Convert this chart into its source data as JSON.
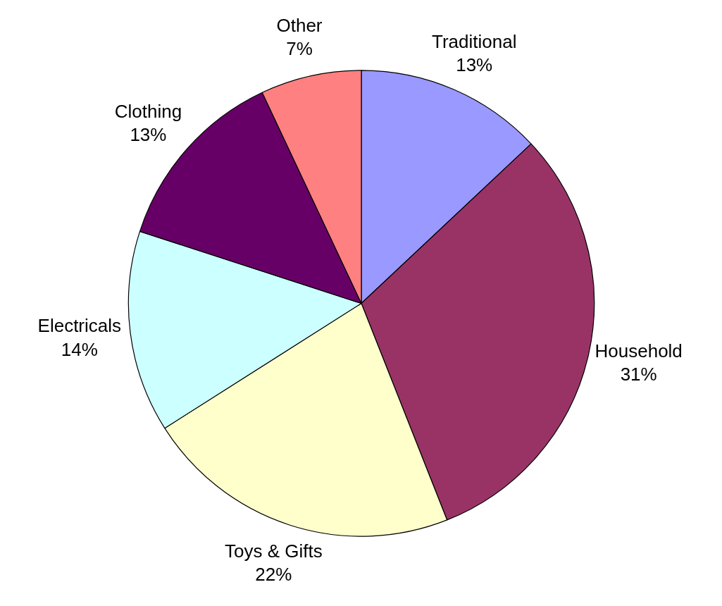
{
  "chart_data": {
    "type": "pie",
    "categories": [
      "Traditional",
      "Household",
      "Toys & Gifts",
      "Electricals",
      "Clothing",
      "Other"
    ],
    "values": [
      13,
      31,
      22,
      14,
      13,
      7
    ],
    "colors": [
      "#9999ff",
      "#993366",
      "#ffffcc",
      "#ccffff",
      "#660066",
      "#ff8080"
    ],
    "value_labels": [
      "13%",
      "31%",
      "22%",
      "14%",
      "13%",
      "7%"
    ],
    "legend": false
  }
}
